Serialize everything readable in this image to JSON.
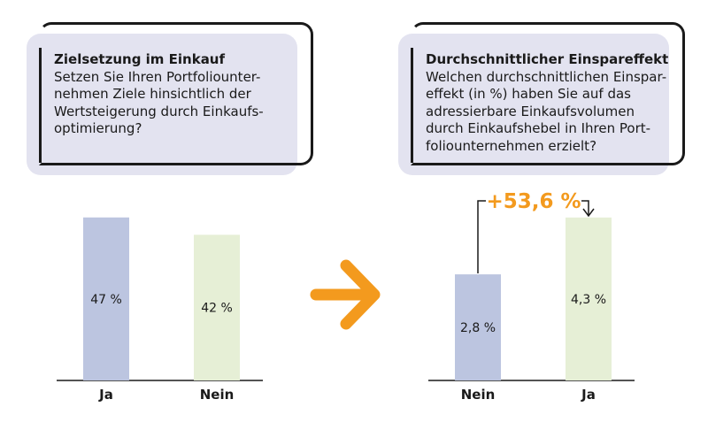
{
  "colors": {
    "box_bg": "#e3e3f0",
    "blue_bar": "#bcc5e0",
    "green_bar": "#e6efd6",
    "accent": "#f39a1e",
    "ink": "#1a1a1a"
  },
  "panel_left": {
    "title": "Zielsetzung im Einkauf",
    "body": "Setzen Sie Ihren Portfoliounter-\nnehmen Ziele hinsichtlich der\nWertsteigerung durch Einkaufs-\noptimierung?"
  },
  "panel_right": {
    "title": "Durchschnittlicher Einspareffekt",
    "body": "Welchen durchschnittlichen Einspar-\neffekt (in %) haben Sie auf das\nadressierbare Einkaufsvolumen\ndurch Einkaufshebel in Ihren Port-\nfoliounternehmen erzielt?"
  },
  "arrow_icon": "arrow-right-icon",
  "delta_label": "+53,6 %",
  "chart_data": [
    {
      "type": "bar",
      "categories": [
        "Ja",
        "Nein"
      ],
      "values": [
        47,
        42
      ],
      "value_labels": [
        "47 %",
        "42 %"
      ],
      "bar_colors": [
        "#bcc5e0",
        "#e6efd6"
      ],
      "ylim": [
        0,
        50
      ]
    },
    {
      "type": "bar",
      "categories": [
        "Nein",
        "Ja"
      ],
      "values": [
        2.8,
        4.3
      ],
      "value_labels": [
        "2,8 %",
        "4,3 %"
      ],
      "bar_colors": [
        "#bcc5e0",
        "#e6efd6"
      ],
      "ylim": [
        0,
        4.6
      ]
    }
  ]
}
